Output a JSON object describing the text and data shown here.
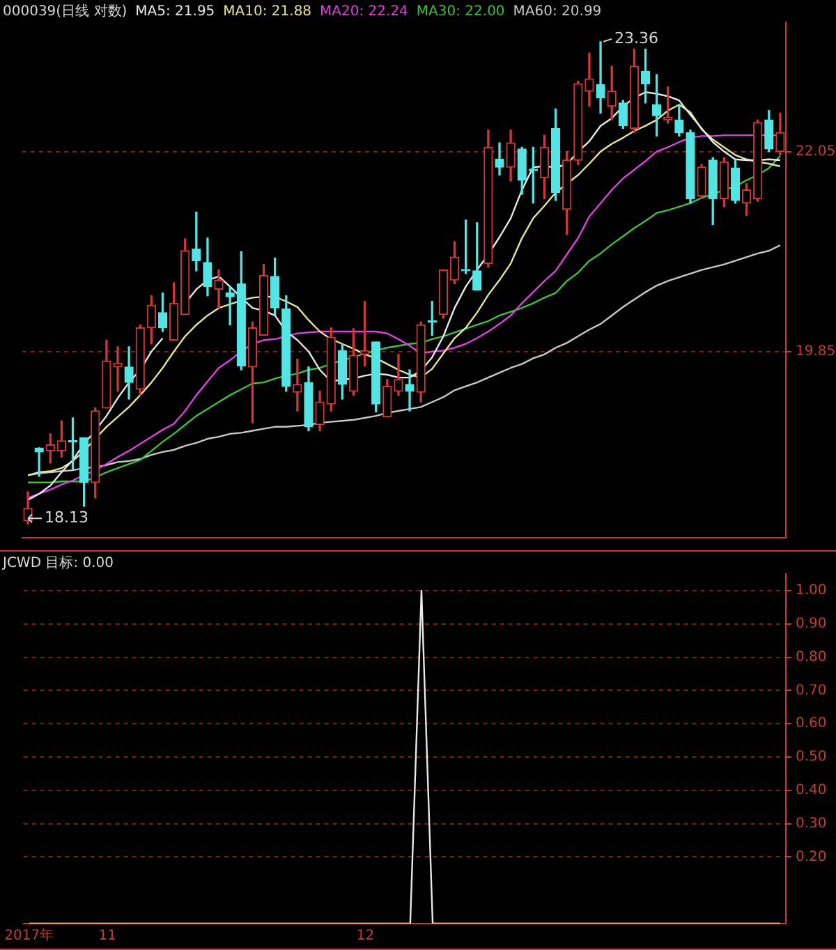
{
  "chart_data": [
    {
      "type": "candlestick",
      "title": "000039(日线 对数)",
      "log": true,
      "grid": "y",
      "tick_labels": "y",
      "categories": [
        null,
        null,
        null,
        null,
        null,
        null,
        null,
        null,
        null,
        null,
        null,
        null,
        null,
        null,
        null,
        null,
        null,
        null,
        null,
        null,
        null,
        null,
        null,
        null,
        null,
        null,
        null,
        null,
        null,
        null,
        null,
        null,
        null,
        null,
        null,
        null,
        null,
        null,
        null,
        null,
        null,
        null,
        null,
        null,
        null,
        null,
        null,
        null,
        null,
        null,
        null,
        null,
        null,
        null,
        null,
        null,
        null,
        null,
        null,
        null,
        null,
        null,
        null,
        null,
        null,
        null,
        null,
        null
      ],
      "ohlc": [
        [
          18.16,
          18.44,
          18.13,
          18.28
        ],
        [
          18.87,
          18.87,
          18.59,
          18.83
        ],
        [
          18.84,
          19.01,
          18.72,
          18.9
        ],
        [
          18.84,
          19.14,
          18.78,
          18.94
        ],
        [
          18.94,
          19.17,
          18.66,
          18.93
        ],
        [
          18.97,
          18.97,
          18.3,
          18.53
        ],
        [
          18.53,
          19.27,
          18.38,
          19.24
        ],
        [
          19.27,
          19.97,
          19.27,
          19.75
        ],
        [
          19.69,
          19.9,
          19.44,
          19.73
        ],
        [
          19.69,
          19.9,
          19.36,
          19.53
        ],
        [
          19.46,
          20.13,
          19.4,
          20.1
        ],
        [
          20.1,
          20.44,
          19.93,
          20.34
        ],
        [
          20.26,
          20.47,
          20.06,
          20.1
        ],
        [
          19.97,
          20.58,
          19.97,
          20.36
        ],
        [
          20.24,
          21.06,
          20.24,
          20.93
        ],
        [
          20.95,
          21.36,
          20.71,
          20.82
        ],
        [
          20.8,
          21.07,
          20.44,
          20.54
        ],
        [
          20.51,
          20.72,
          20.31,
          20.61
        ],
        [
          20.47,
          20.54,
          20.13,
          20.43
        ],
        [
          20.57,
          20.92,
          19.66,
          19.7
        ],
        [
          19.69,
          20.16,
          19.12,
          20.1
        ],
        [
          20.02,
          20.78,
          20.02,
          20.66
        ],
        [
          20.65,
          20.85,
          20.24,
          20.31
        ],
        [
          20.3,
          20.44,
          19.44,
          19.49
        ],
        [
          19.43,
          19.77,
          19.24,
          19.51
        ],
        [
          19.53,
          19.69,
          19.04,
          19.08
        ],
        [
          19.1,
          19.44,
          19.04,
          19.33
        ],
        [
          19.31,
          20.1,
          19.24,
          20.0
        ],
        [
          19.86,
          19.93,
          19.36,
          19.51
        ],
        [
          19.44,
          20.09,
          19.4,
          19.81
        ],
        [
          19.82,
          20.38,
          19.7,
          19.86
        ],
        [
          19.95,
          19.95,
          19.23,
          19.31
        ],
        [
          19.18,
          19.56,
          19.18,
          19.49
        ],
        [
          19.44,
          19.82,
          19.4,
          19.56
        ],
        [
          19.51,
          19.66,
          19.24,
          19.44
        ],
        [
          19.43,
          20.16,
          19.33,
          20.13
        ],
        [
          20.17,
          20.38,
          20.02,
          20.16
        ],
        [
          20.24,
          20.72,
          20.2,
          20.72
        ],
        [
          20.61,
          21.03,
          20.57,
          20.86
        ],
        [
          20.72,
          21.27,
          20.68,
          20.71
        ],
        [
          20.71,
          21.24,
          20.5,
          20.5
        ],
        [
          20.79,
          22.3,
          20.75,
          22.1
        ],
        [
          21.96,
          22.15,
          21.78,
          21.87
        ],
        [
          21.87,
          22.3,
          21.71,
          22.15
        ],
        [
          22.08,
          22.1,
          21.56,
          21.72
        ],
        [
          21.84,
          22.1,
          21.46,
          21.83
        ],
        [
          21.75,
          22.24,
          21.51,
          22.1
        ],
        [
          22.32,
          22.55,
          21.49,
          21.58
        ],
        [
          21.39,
          22.05,
          21.11,
          21.95
        ],
        [
          21.95,
          22.88,
          21.9,
          22.85
        ],
        [
          22.76,
          23.22,
          22.58,
          22.91
        ],
        [
          22.84,
          23.36,
          22.5,
          22.68
        ],
        [
          22.58,
          23.06,
          22.42,
          22.76
        ],
        [
          22.62,
          22.65,
          22.32,
          22.35
        ],
        [
          22.32,
          23.27,
          22.27,
          23.06
        ],
        [
          23.0,
          23.27,
          22.62,
          22.85
        ],
        [
          22.6,
          22.96,
          22.23,
          22.47
        ],
        [
          22.42,
          22.81,
          22.38,
          22.45
        ],
        [
          22.42,
          22.6,
          22.23,
          22.27
        ],
        [
          22.27,
          22.3,
          21.46,
          21.51
        ],
        [
          21.54,
          21.9,
          21.51,
          21.87
        ],
        [
          21.95,
          21.98,
          21.22,
          21.51
        ],
        [
          21.51,
          21.98,
          21.42,
          21.93
        ],
        [
          21.86,
          21.95,
          21.46,
          21.49
        ],
        [
          21.46,
          21.68,
          21.32,
          21.61
        ],
        [
          21.51,
          22.42,
          21.48,
          22.39
        ],
        [
          22.42,
          22.53,
          22.05,
          22.08
        ],
        [
          22.05,
          22.5,
          22.01,
          22.27
        ]
      ],
      "series": [
        {
          "name": "MA5: 21.95",
          "type": "line",
          "color": "#e8e8e8",
          "values": [
            18.36,
            18.42,
            18.5,
            18.63,
            18.75,
            18.91,
            19.04,
            19.19,
            19.37,
            19.53,
            19.66,
            19.85,
            19.99,
            null,
            20.36,
            20.51,
            20.61,
            20.65,
            20.54,
            20.42,
            20.31,
            20.28,
            20.23,
            20.06,
            19.97,
            19.85,
            19.66,
            19.54,
            19.56,
            19.57,
            19.6,
            19.62,
            19.61,
            19.58,
            19.58,
            19.65,
            19.79,
            20.01,
            20.31,
            20.54,
            20.72,
            20.89,
            21.08,
            21.29,
            21.61,
            21.87,
            21.88,
            21.87,
            21.9,
            22.05,
            22.17,
            22.35,
            22.44,
            22.58,
            22.68,
            22.75,
            22.73,
            22.7,
            22.65,
            22.48,
            22.32,
            22.16,
            22.05,
            21.96,
            21.95,
            21.95,
            21.96,
            21.95
          ]
        },
        {
          "name": "MA10: 21.88",
          "type": "line",
          "color": "#e6e39a",
          "values": [
            18.6,
            18.63,
            18.64,
            18.67,
            18.74,
            18.84,
            18.96,
            19.08,
            19.18,
            19.28,
            19.4,
            19.53,
            19.68,
            19.85,
            20.01,
            20.13,
            20.23,
            20.31,
            20.35,
            20.39,
            20.42,
            20.43,
            20.43,
            20.38,
            20.32,
            20.18,
            20.06,
            19.98,
            19.93,
            19.88,
            19.82,
            19.78,
            19.72,
            19.66,
            19.61,
            19.58,
            19.67,
            19.83,
            19.99,
            20.1,
            20.26,
            20.45,
            20.61,
            20.79,
            21.07,
            21.29,
            21.43,
            21.58,
            21.68,
            21.78,
            21.91,
            22.05,
            22.14,
            22.21,
            22.29,
            22.35,
            22.42,
            22.53,
            22.6,
            22.51,
            22.31,
            22.19,
            22.1,
            22.01,
            21.96,
            21.93,
            21.91,
            21.88
          ]
        },
        {
          "name": "MA20: 22.24",
          "type": "line",
          "color": "#e040e0",
          "values": [
            18.38,
            18.42,
            18.46,
            18.51,
            18.55,
            18.6,
            18.65,
            18.71,
            18.78,
            18.84,
            18.91,
            18.98,
            19.05,
            19.11,
            19.24,
            19.4,
            19.54,
            19.68,
            19.76,
            19.85,
            19.93,
            19.97,
            19.98,
            20.01,
            20.04,
            20.05,
            20.06,
            20.06,
            20.06,
            20.06,
            20.06,
            20.06,
            20.04,
            19.98,
            19.91,
            19.83,
            19.85,
            19.86,
            19.89,
            19.93,
            19.99,
            20.06,
            20.14,
            20.23,
            20.36,
            20.48,
            20.6,
            20.71,
            20.89,
            21.07,
            21.31,
            21.46,
            21.61,
            21.74,
            21.84,
            21.94,
            22.05,
            22.1,
            22.16,
            22.21,
            22.23,
            22.23,
            22.24,
            22.24,
            22.24,
            22.24,
            22.24,
            22.24
          ]
        },
        {
          "name": "MA30: 22.00",
          "type": "line",
          "color": "#40c040",
          "values": [
            18.53,
            18.53,
            18.53,
            18.54,
            18.54,
            18.54,
            18.58,
            18.63,
            18.67,
            18.71,
            18.75,
            18.84,
            18.93,
            19.01,
            19.1,
            19.19,
            19.26,
            19.33,
            19.4,
            19.46,
            19.52,
            19.53,
            19.57,
            19.6,
            19.62,
            19.66,
            19.68,
            19.72,
            19.76,
            19.79,
            19.83,
            19.86,
            19.89,
            19.91,
            19.93,
            19.94,
            19.98,
            20.01,
            20.05,
            20.09,
            20.13,
            20.17,
            20.23,
            20.27,
            20.31,
            20.36,
            20.42,
            20.47,
            20.6,
            20.69,
            20.82,
            20.9,
            21.0,
            21.09,
            21.18,
            21.26,
            21.35,
            21.38,
            21.42,
            21.46,
            21.52,
            21.56,
            21.61,
            21.65,
            21.72,
            21.78,
            21.86,
            22.0
          ]
        },
        {
          "name": "MA60: 20.99",
          "type": "line",
          "color": "#c8c8c8",
          "values": [
            18.6,
            18.62,
            18.63,
            18.64,
            18.65,
            18.67,
            18.68,
            18.7,
            18.73,
            18.74,
            18.76,
            18.8,
            18.83,
            18.85,
            18.89,
            18.92,
            18.96,
            18.98,
            19.01,
            19.02,
            19.04,
            19.06,
            19.08,
            19.08,
            19.09,
            19.1,
            19.12,
            19.13,
            19.14,
            19.15,
            19.17,
            19.19,
            19.22,
            19.24,
            19.26,
            19.28,
            19.33,
            19.38,
            19.45,
            19.49,
            19.53,
            19.58,
            19.63,
            19.68,
            19.72,
            19.78,
            19.82,
            19.89,
            19.94,
            20.01,
            20.08,
            20.14,
            20.23,
            20.32,
            20.4,
            20.48,
            20.55,
            20.6,
            20.64,
            20.68,
            20.72,
            20.75,
            20.78,
            20.82,
            20.86,
            20.9,
            20.93,
            20.99
          ]
        }
      ],
      "ylim": [
        18.0,
        23.6
      ],
      "yticks": [
        {
          "value": 19.85,
          "label": "19.85"
        },
        {
          "value": 22.05,
          "label": "22.05"
        }
      ],
      "annotations": [
        "23.36",
        "18.13"
      ]
    },
    {
      "type": "line",
      "title": "JCWD 目标: 0.00",
      "grid": "y",
      "categories": [
        "2017年",
        null,
        null,
        null,
        null,
        null,
        null,
        "11",
        null,
        null,
        null,
        null,
        null,
        null,
        null,
        null,
        null,
        null,
        null,
        null,
        null,
        null,
        null,
        null,
        null,
        null,
        null,
        null,
        null,
        null,
        "12",
        null,
        null,
        null,
        null,
        null,
        null,
        null,
        null,
        null,
        null,
        null,
        null,
        null,
        null,
        null,
        null,
        null,
        null,
        null,
        null,
        null,
        null,
        null,
        null,
        null,
        null,
        null,
        null,
        null,
        null,
        null,
        null,
        null,
        null,
        null,
        null,
        null
      ],
      "series": [
        {
          "color": "#e8e8e8",
          "values": [
            0,
            0,
            0,
            0,
            0,
            0,
            0,
            0,
            0,
            0,
            0,
            0,
            0,
            0,
            0,
            0,
            0,
            0,
            0,
            0,
            0,
            0,
            0,
            0,
            0,
            0,
            0,
            0,
            0,
            0,
            0,
            0,
            0,
            0,
            0,
            1,
            0,
            0,
            0,
            0,
            0,
            0,
            0,
            0,
            0,
            0,
            0,
            0,
            0,
            0,
            0,
            0,
            0,
            0,
            0,
            0,
            0,
            0,
            0,
            0,
            0,
            0,
            0,
            0,
            0,
            0,
            0,
            0
          ]
        }
      ],
      "ylim": [
        0,
        1.05
      ],
      "yticks": [
        {
          "value": 0.2,
          "label": "0.20"
        },
        {
          "value": 0.3,
          "label": "0.30"
        },
        {
          "value": 0.4,
          "label": "0.40"
        },
        {
          "value": 0.5,
          "label": "0.50"
        },
        {
          "value": 0.6,
          "label": "0.60"
        },
        {
          "value": 0.7,
          "label": "0.70"
        },
        {
          "value": 0.8,
          "label": "0.80"
        },
        {
          "value": 0.9,
          "label": "0.90"
        },
        {
          "value": 1,
          "label": "1.00"
        }
      ]
    }
  ]
}
